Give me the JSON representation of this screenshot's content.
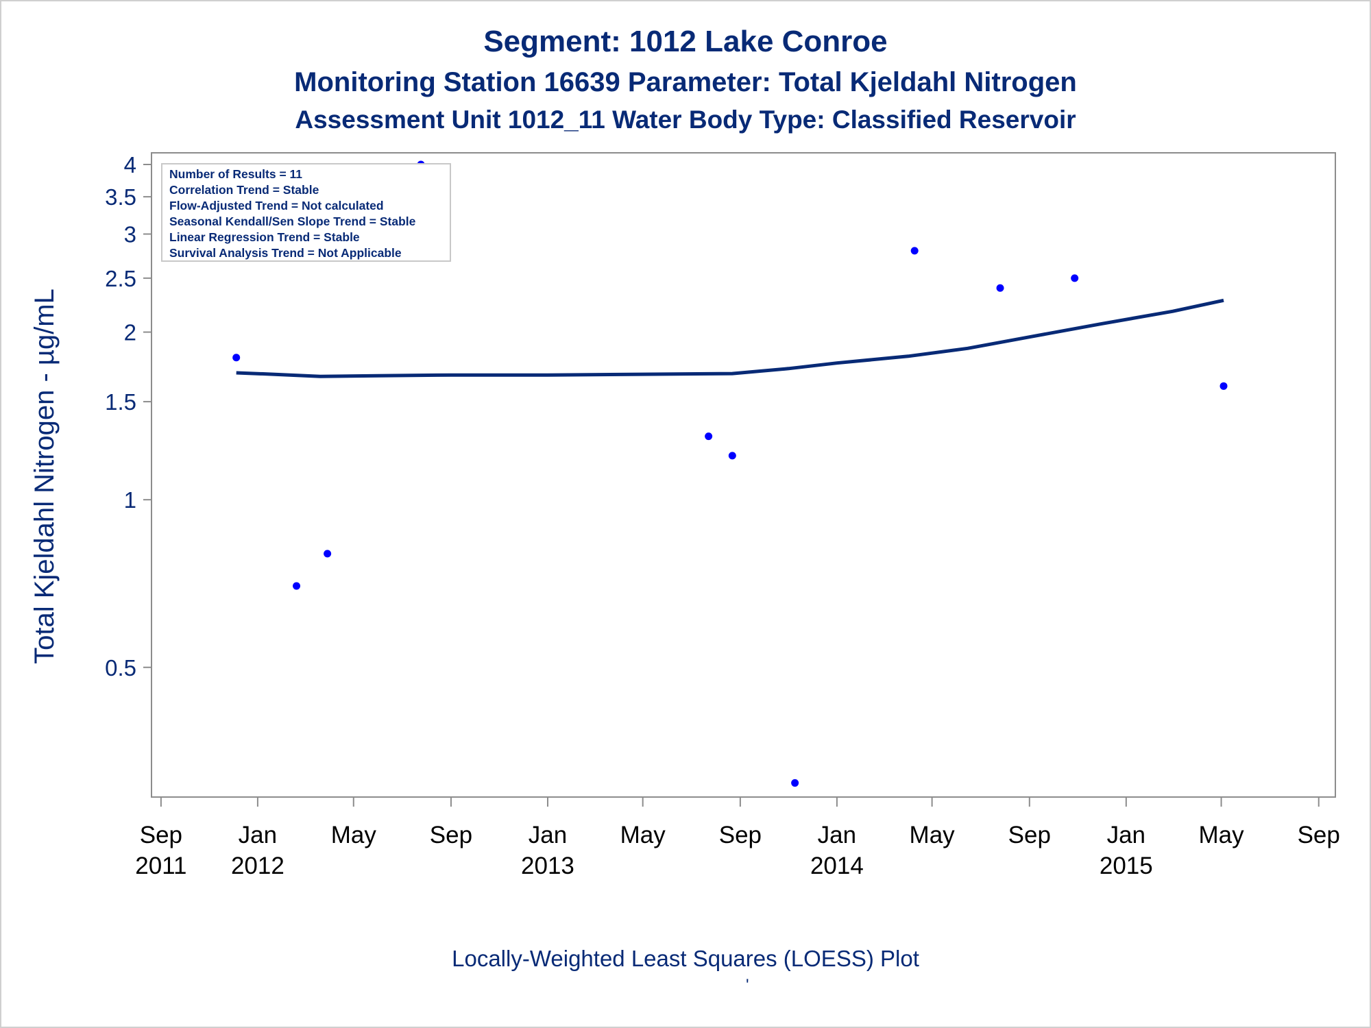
{
  "chart_data": {
    "type": "scatter",
    "title": "Segment: 1012  Lake Conroe",
    "subtitle": "Monitoring Station 16639 Parameter: Total Kjeldahl Nitrogen",
    "subtitle2": "Assessment Unit 1012_11   Water Body Type: Classified Reservoir",
    "ylabel": "Total Kjeldahl Nitrogen -  µg/mL",
    "xlabel": "",
    "footer": "Locally-Weighted Least Squares (LOESS) Plot",
    "footer_mark": "'",
    "y_scale": "log",
    "ylim": [
      0.3,
      4
    ],
    "xlim": [
      "2011-08-20",
      "2015-09-22"
    ],
    "grid": false,
    "y_ticks": [
      {
        "value": 4,
        "label": "4"
      },
      {
        "value": 3.5,
        "label": "3.5"
      },
      {
        "value": 3,
        "label": "3"
      },
      {
        "value": 2.5,
        "label": "2.5"
      },
      {
        "value": 2,
        "label": "2"
      },
      {
        "value": 1.5,
        "label": "1.5"
      },
      {
        "value": 1,
        "label": "1"
      },
      {
        "value": 0.5,
        "label": "0.5"
      }
    ],
    "x_ticks": [
      {
        "date": "2011-09-01",
        "line1": "Sep",
        "line2": "2011"
      },
      {
        "date": "2012-01-01",
        "line1": "Jan",
        "line2": "2012"
      },
      {
        "date": "2012-05-01",
        "line1": "May",
        "line2": ""
      },
      {
        "date": "2012-09-01",
        "line1": "Sep",
        "line2": ""
      },
      {
        "date": "2013-01-01",
        "line1": "Jan",
        "line2": "2013"
      },
      {
        "date": "2013-05-01",
        "line1": "May",
        "line2": ""
      },
      {
        "date": "2013-09-01",
        "line1": "Sep",
        "line2": ""
      },
      {
        "date": "2014-01-01",
        "line1": "Jan",
        "line2": "2014"
      },
      {
        "date": "2014-05-01",
        "line1": "May",
        "line2": ""
      },
      {
        "date": "2014-09-01",
        "line1": "Sep",
        "line2": ""
      },
      {
        "date": "2015-01-01",
        "line1": "Jan",
        "line2": "2015"
      },
      {
        "date": "2015-05-01",
        "line1": "May",
        "line2": ""
      },
      {
        "date": "2015-09-01",
        "line1": "Sep",
        "line2": ""
      }
    ],
    "series": [
      {
        "kind": "scatter",
        "points": [
          {
            "x": "2011-12-05",
            "y": 1.8
          },
          {
            "x": "2012-02-19",
            "y": 0.7
          },
          {
            "x": "2012-03-29",
            "y": 0.8
          },
          {
            "x": "2012-07-25",
            "y": 4.0
          },
          {
            "x": "2013-07-23",
            "y": 1.3
          },
          {
            "x": "2013-08-22",
            "y": 1.2
          },
          {
            "x": "2013-11-09",
            "y": 0.31
          },
          {
            "x": "2014-04-09",
            "y": 2.8
          },
          {
            "x": "2014-07-26",
            "y": 2.4
          },
          {
            "x": "2014-10-28",
            "y": 2.5
          },
          {
            "x": "2015-05-04",
            "y": 1.6
          }
        ]
      },
      {
        "kind": "loess",
        "points": [
          {
            "x": "2011-12-05",
            "y": 1.69
          },
          {
            "x": "2012-01-20",
            "y": 1.68
          },
          {
            "x": "2012-03-20",
            "y": 1.665
          },
          {
            "x": "2012-06-01",
            "y": 1.67
          },
          {
            "x": "2012-09-01",
            "y": 1.675
          },
          {
            "x": "2013-01-01",
            "y": 1.675
          },
          {
            "x": "2013-05-01",
            "y": 1.68
          },
          {
            "x": "2013-08-22",
            "y": 1.685
          },
          {
            "x": "2013-11-01",
            "y": 1.72
          },
          {
            "x": "2014-01-01",
            "y": 1.76
          },
          {
            "x": "2014-04-01",
            "y": 1.81
          },
          {
            "x": "2014-06-15",
            "y": 1.87
          },
          {
            "x": "2014-09-01",
            "y": 1.96
          },
          {
            "x": "2014-12-01",
            "y": 2.07
          },
          {
            "x": "2015-03-01",
            "y": 2.18
          },
          {
            "x": "2015-05-04",
            "y": 2.28
          }
        ]
      }
    ],
    "stats_box": [
      "Number of Results = 11",
      "Correlation Trend = Stable",
      "Flow-Adjusted Trend = Not calculated",
      "Seasonal Kendall/Sen Slope Trend = Stable",
      "Linear Regression Trend = Stable",
      "Survival Analysis Trend = Not Applicable"
    ],
    "colors": {
      "text": "#082a76",
      "points": "#0000ff",
      "loess_line": "#082a76",
      "axis": "#8c8c8c"
    }
  }
}
